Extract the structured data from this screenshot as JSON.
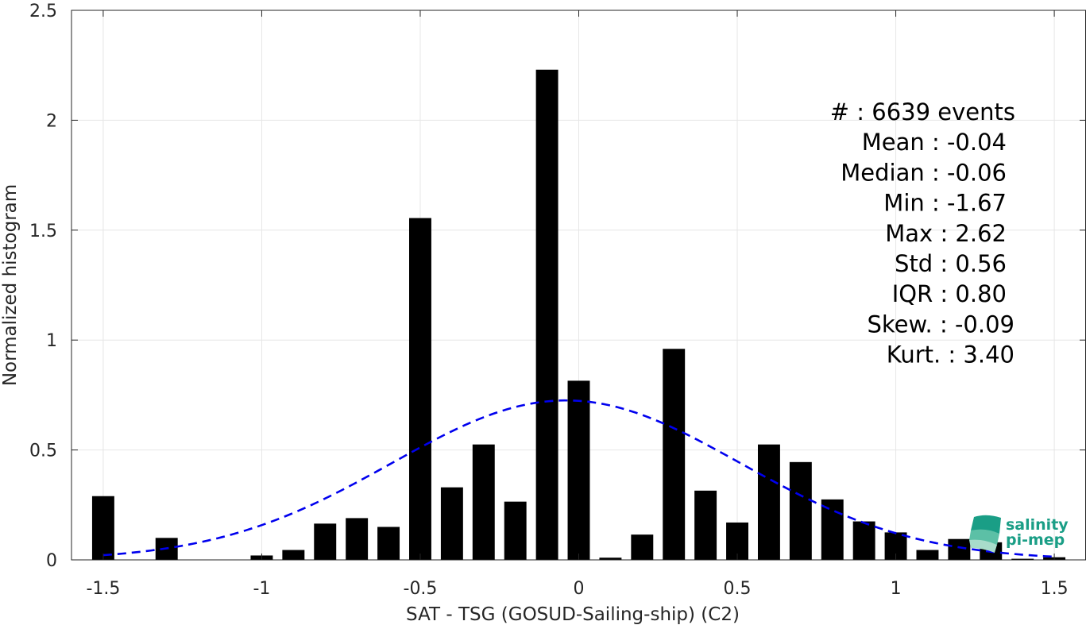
{
  "chart_data": {
    "type": "bar",
    "xlabel": "SAT - TSG (GOSUD-Sailing-ship) (C2)",
    "ylabel": "Normalized histogram",
    "xlim": [
      -1.6,
      1.6
    ],
    "ylim": [
      0,
      2.5
    ],
    "xticks": [
      -1.5,
      -1,
      -0.5,
      0,
      0.5,
      1,
      1.5
    ],
    "xtick_labels": [
      "-1.5",
      "-1",
      "-0.5",
      "0",
      "0.5",
      "1",
      "1.5"
    ],
    "yticks": [
      0,
      0.5,
      1,
      1.5,
      2,
      2.5
    ],
    "ytick_labels": [
      "0",
      "0.5",
      "1",
      "1.5",
      "2",
      "2.5"
    ],
    "grid": true,
    "bin_width": 0.1,
    "bar_width_fraction": 0.7,
    "bar_color": "#000000",
    "bins": [
      {
        "x": -1.5,
        "y": 0.29
      },
      {
        "x": -1.3,
        "y": 0.1
      },
      {
        "x": -1.0,
        "y": 0.02
      },
      {
        "x": -0.9,
        "y": 0.045
      },
      {
        "x": -0.8,
        "y": 0.165
      },
      {
        "x": -0.7,
        "y": 0.19
      },
      {
        "x": -0.6,
        "y": 0.15
      },
      {
        "x": -0.5,
        "y": 1.555
      },
      {
        "x": -0.4,
        "y": 0.33
      },
      {
        "x": -0.3,
        "y": 0.525
      },
      {
        "x": -0.2,
        "y": 0.265
      },
      {
        "x": -0.1,
        "y": 2.23
      },
      {
        "x": 0.0,
        "y": 0.815
      },
      {
        "x": 0.1,
        "y": 0.01
      },
      {
        "x": 0.2,
        "y": 0.115
      },
      {
        "x": 0.3,
        "y": 0.96
      },
      {
        "x": 0.4,
        "y": 0.315
      },
      {
        "x": 0.5,
        "y": 0.17
      },
      {
        "x": 0.6,
        "y": 0.525
      },
      {
        "x": 0.7,
        "y": 0.445
      },
      {
        "x": 0.8,
        "y": 0.275
      },
      {
        "x": 0.9,
        "y": 0.175
      },
      {
        "x": 1.0,
        "y": 0.125
      },
      {
        "x": 1.1,
        "y": 0.045
      },
      {
        "x": 1.2,
        "y": 0.095
      },
      {
        "x": 1.3,
        "y": 0.08
      },
      {
        "x": 1.4,
        "y": 0.005
      },
      {
        "x": 1.5,
        "y": 0.012
      }
    ],
    "fit_curve": {
      "type": "gaussian",
      "style": "dashed",
      "color": "#0000ee",
      "mean": -0.04,
      "std": 0.55,
      "x_range": [
        -1.5,
        1.5
      ]
    },
    "annotations": [
      "#  : 6639 events",
      "Mean : -0.04",
      "Median : -0.06",
      "Min : -1.67",
      "Max : 2.62",
      "Std : 0.56",
      "IQR : 0.80",
      "Skew. : -0.09",
      "Kurt. : 3.40"
    ]
  },
  "logo": {
    "line1": "salinity",
    "line2": "pi-mep",
    "color": "#1a9e86"
  }
}
